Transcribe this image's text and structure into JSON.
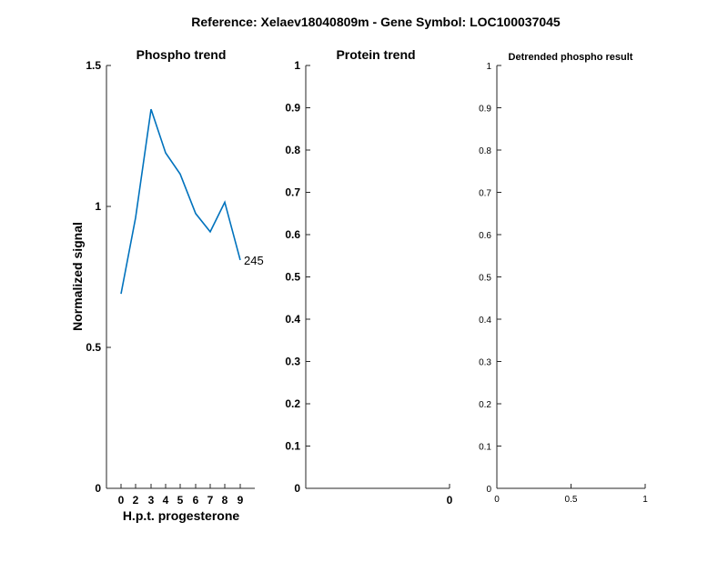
{
  "figure": {
    "suptitle": "Reference:  Xelaev18040809m - Gene Symbol:  LOC100037045"
  },
  "chart_data": [
    {
      "type": "line",
      "title": "Phospho trend",
      "xlabel": "H.p.t. progesterone",
      "ylabel": "Normalized signal",
      "categories": [
        "0",
        "2",
        "3",
        "4",
        "5",
        "6",
        "7",
        "8",
        "9"
      ],
      "series": [
        {
          "name": "",
          "values": [
            0.69,
            0.96,
            1.345,
            1.19,
            1.115,
            0.975,
            0.91,
            1.015,
            0.81
          ],
          "color": "#0072BD"
        }
      ],
      "ylim": [
        0,
        1.5
      ],
      "yticks": [
        "0",
        "0.5",
        "1",
        "1.5"
      ],
      "annotation": "245",
      "grid": false
    },
    {
      "type": "line",
      "title": "Protein trend",
      "xlabel": "",
      "ylabel": "",
      "series": [],
      "ylim": [
        0,
        1
      ],
      "yticks": [
        "0",
        "0.1",
        "0.2",
        "0.3",
        "0.4",
        "0.5",
        "0.6",
        "0.7",
        "0.8",
        "0.9",
        "1"
      ],
      "xticks": [
        "0"
      ],
      "grid": false
    },
    {
      "type": "line",
      "title": "Detrended phospho result",
      "xlabel": "",
      "ylabel": "",
      "series": [],
      "xlim": [
        0,
        1
      ],
      "ylim": [
        0,
        1
      ],
      "yticks": [
        "0",
        "0.1",
        "0.2",
        "0.3",
        "0.4",
        "0.5",
        "0.6",
        "0.7",
        "0.8",
        "0.9",
        "1"
      ],
      "xticks": [
        "0",
        "0.5",
        "1"
      ],
      "grid": false
    }
  ]
}
